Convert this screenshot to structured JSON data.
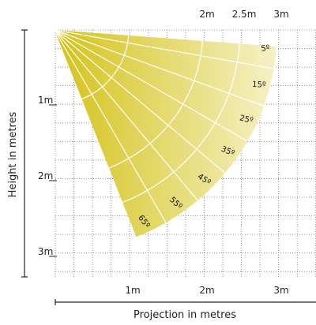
{
  "title": "",
  "x_axis": {
    "label": "Projection in metres",
    "bottom_ticks": [
      "1m",
      "2m",
      "3m"
    ],
    "top_ticks": [
      "2m",
      "2.5m",
      "3m"
    ]
  },
  "y_axis": {
    "label": "Height in metres",
    "ticks": [
      "1m",
      "2m",
      "3m"
    ]
  },
  "angle_labels": [
    "5º",
    "15º",
    "25º",
    "35º",
    "45º",
    "55º",
    "65º"
  ],
  "colors": {
    "fill_dark": "#d4c21a",
    "fill_light": "#f6f1c6",
    "grid": "#777777",
    "lines": "#ffffff"
  }
}
